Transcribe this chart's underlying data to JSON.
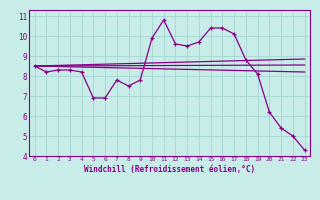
{
  "xlabel": "Windchill (Refroidissement éolien,°C)",
  "background_color": "#c8ede8",
  "grid_color": "#aad8d4",
  "line_color": "#880088",
  "xlim": [
    -0.5,
    23.5
  ],
  "ylim": [
    4,
    11.3
  ],
  "xticks": [
    0,
    1,
    2,
    3,
    4,
    5,
    6,
    7,
    8,
    9,
    10,
    11,
    12,
    13,
    14,
    15,
    16,
    17,
    18,
    19,
    20,
    21,
    22,
    23
  ],
  "yticks": [
    4,
    5,
    6,
    7,
    8,
    9,
    10,
    11
  ],
  "series1_x": [
    0,
    1,
    2,
    3,
    4,
    5,
    6,
    7,
    8,
    9,
    10,
    11,
    12,
    13,
    14,
    15,
    16,
    17,
    18,
    19,
    20,
    21,
    22,
    23
  ],
  "series1_y": [
    8.5,
    8.2,
    8.3,
    8.3,
    8.2,
    6.9,
    6.9,
    7.8,
    7.5,
    7.8,
    9.9,
    10.8,
    9.6,
    9.5,
    9.7,
    10.4,
    10.4,
    10.1,
    8.8,
    8.1,
    6.2,
    5.4,
    5.0,
    4.3
  ],
  "line2_x0": 0,
  "line2_y0": 8.5,
  "line2_x1": 23,
  "line2_y1": 8.2,
  "line3_x0": 0,
  "line3_y0": 8.5,
  "line3_x1": 23,
  "line3_y1": 8.55,
  "line4_x0": 0,
  "line4_y0": 8.5,
  "line4_x1": 23,
  "line4_y1": 8.85
}
